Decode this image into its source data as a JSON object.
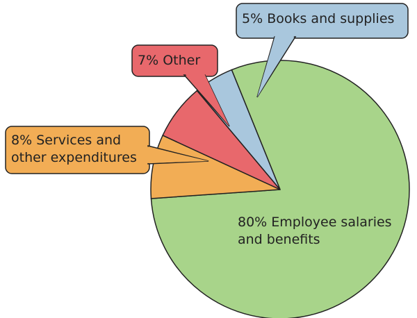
{
  "chart_data": {
    "type": "pie",
    "categories": [
      "Employee salaries and benefits",
      "Services and other expenditures",
      "Other",
      "Books and supplies"
    ],
    "values": [
      80,
      8,
      7,
      5
    ],
    "value_labels": [
      "80%",
      "8%",
      "7%",
      "5%"
    ],
    "colors": [
      "#a8d48a",
      "#f2ad55",
      "#e8686c",
      "#a9c7dd"
    ]
  }
}
